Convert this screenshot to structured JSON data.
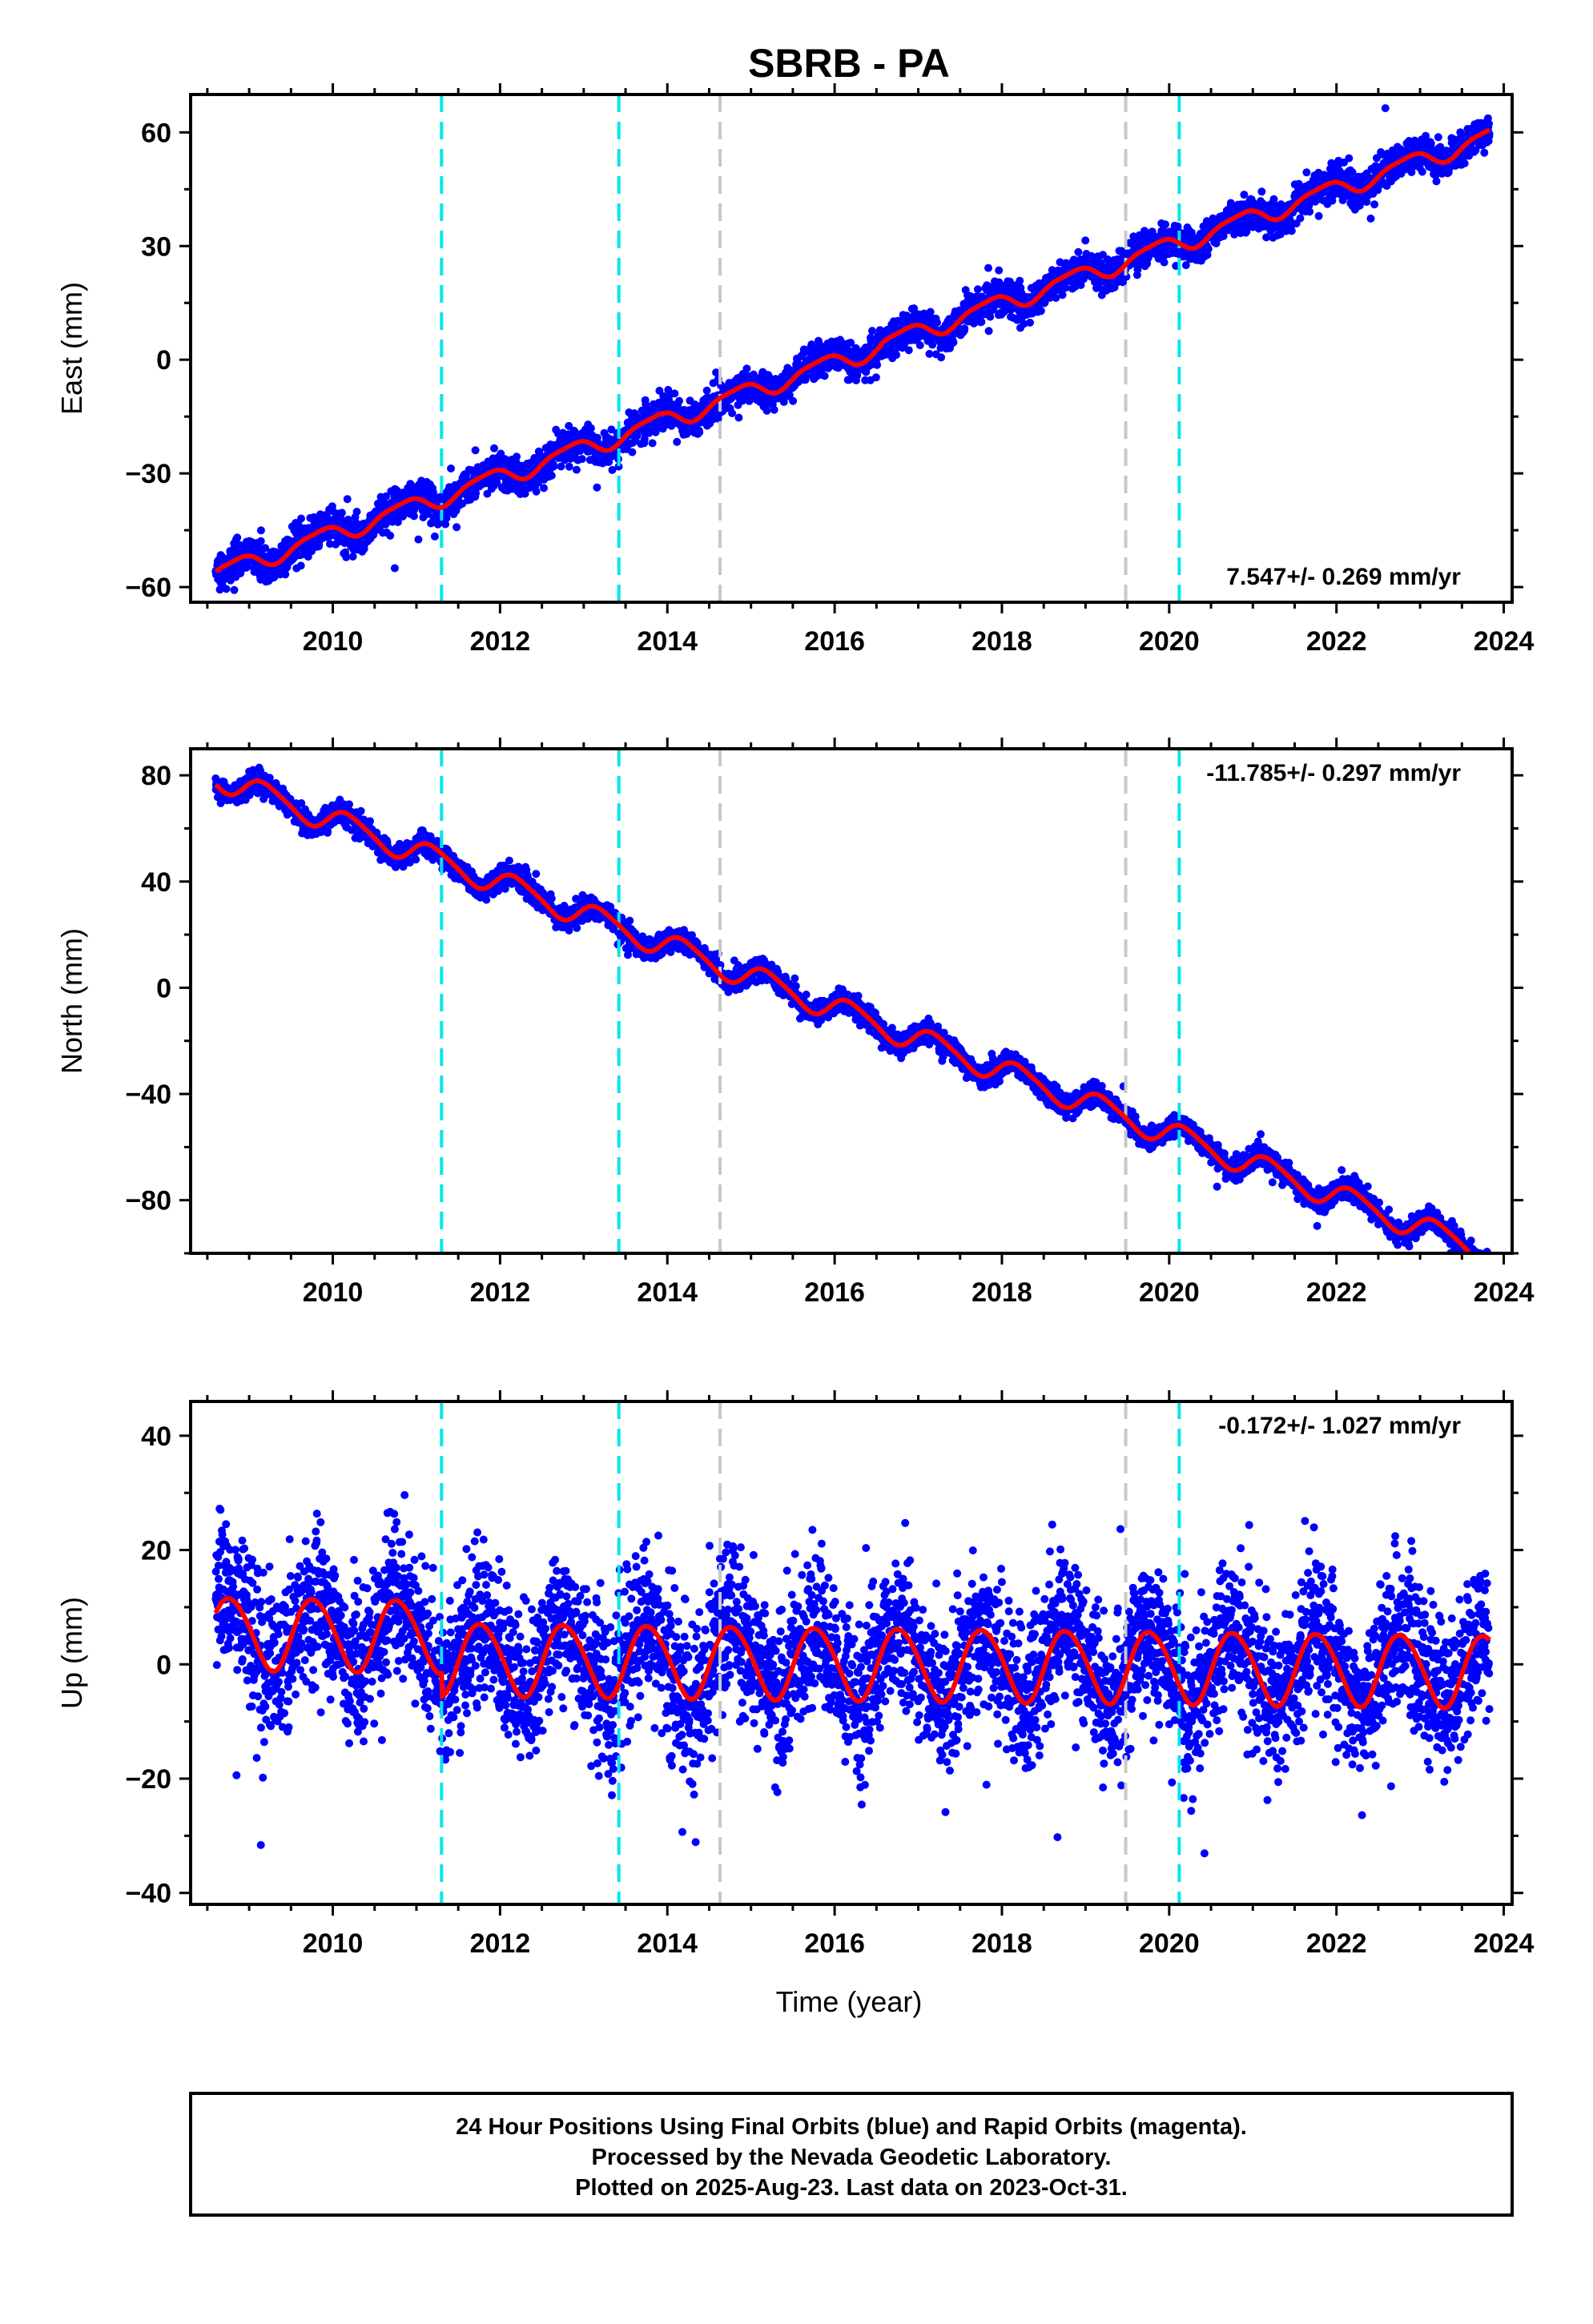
{
  "title": "SBRB - PA",
  "x_label": "Time (year)",
  "footer": [
    "24 Hour Positions Using Final Orbits (blue) and Rapid Orbits (magenta).",
    "Processed by the Nevada Geodetic Laboratory.",
    "Plotted on 2025-Aug-23. Last data on 2023-Oct-31."
  ],
  "colors": {
    "data": "#0000ff",
    "model": "#ff0000",
    "equipment_change": "#00e5ee",
    "earthquake": "#c8c8c8",
    "frame": "#000000"
  },
  "chart_data": [
    {
      "type": "scatter",
      "component": "east",
      "ylabel": "East (mm)",
      "rate_label": "7.547+/- 0.269 mm/yr",
      "rate_position": "bottom-right",
      "xlim": [
        2008.3,
        2024.1
      ],
      "ylim": [
        -64,
        70
      ],
      "xticks": [
        2010,
        2012,
        2014,
        2016,
        2018,
        2020,
        2022,
        2024
      ],
      "yticks": [
        -60,
        -30,
        0,
        30,
        60
      ],
      "ytick_labels": [
        "−60",
        "−30",
        "0",
        "30",
        "60"
      ],
      "data_range": [
        2008.6,
        2023.83
      ],
      "trend_anchor": [
        2008.6,
        -56.5
      ],
      "rate_mm_yr": 7.547,
      "seasonal": {
        "annual_amp": 2.3,
        "annual_phase": 2.6,
        "semiannual_amp": 0.6,
        "semiannual_phase": 1.1
      },
      "offsets": [
        {
          "t": 2016.55,
          "mm": 0.5
        }
      ],
      "scatter_sd": 2.2,
      "grey_lines": [
        2014.63,
        2019.48
      ],
      "cyan_lines": [
        2011.3,
        2013.42,
        2020.12
      ]
    },
    {
      "type": "scatter",
      "component": "north",
      "ylabel": "North (mm)",
      "rate_label": "-11.785+/- 0.297 mm/yr",
      "rate_position": "top-right",
      "xlim": [
        2008.3,
        2024.1
      ],
      "ylim": [
        -100,
        90
      ],
      "xticks": [
        2010,
        2012,
        2014,
        2016,
        2018,
        2020,
        2022,
        2024
      ],
      "yticks": [
        -80,
        -40,
        0,
        40,
        80
      ],
      "ytick_labels": [
        "−80",
        "−40",
        "0",
        "40",
        "80"
      ],
      "data_range": [
        2008.6,
        2023.83
      ],
      "trend_anchor": [
        2008.6,
        79.5
      ],
      "rate_mm_yr": -11.785,
      "seasonal": {
        "annual_amp": 4.5,
        "annual_phase": 0.3,
        "semiannual_amp": 0.8,
        "semiannual_phase": 0.9
      },
      "offsets": [],
      "scatter_sd": 2.0,
      "grey_lines": [
        2014.63,
        2019.48
      ],
      "cyan_lines": [
        2011.3,
        2013.42,
        2020.12
      ]
    },
    {
      "type": "scatter",
      "component": "up",
      "ylabel": "Up (mm)",
      "rate_label": "-0.172+/- 1.027 mm/yr",
      "rate_position": "top-right",
      "xlim": [
        2008.3,
        2024.1
      ],
      "ylim": [
        -42,
        46
      ],
      "xticks": [
        2010,
        2012,
        2014,
        2016,
        2018,
        2020,
        2022,
        2024
      ],
      "yticks": [
        -40,
        -20,
        0,
        20,
        40
      ],
      "ytick_labels": [
        "−40",
        "−20",
        "0",
        "20",
        "40"
      ],
      "data_range": [
        2008.6,
        2023.83
      ],
      "trend_anchor": [
        2008.6,
        5.5
      ],
      "rate_mm_yr": -0.172,
      "seasonal": {
        "annual_amp": 6.3,
        "annual_phase": 3.0,
        "semiannual_amp": 0.5,
        "semiannual_phase": 0.4
      },
      "offsets": [
        {
          "t": 2011.3,
          "mm": -4.0
        }
      ],
      "scatter_sd": 6.5,
      "grey_lines": [
        2014.63,
        2019.48
      ],
      "cyan_lines": [
        2011.3,
        2013.42,
        2020.12
      ]
    }
  ]
}
